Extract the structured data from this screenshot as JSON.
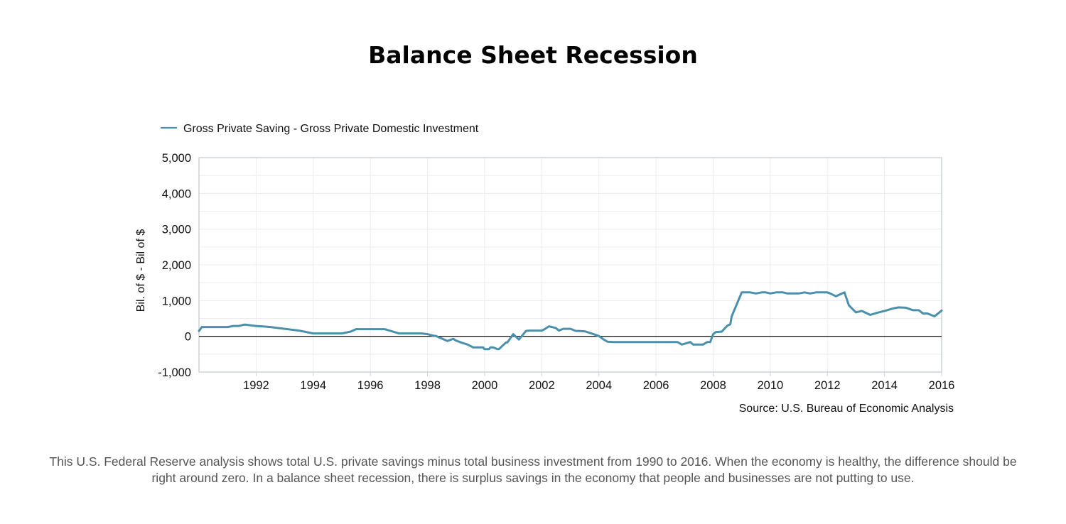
{
  "page": {
    "title": "Balance Sheet Recession",
    "source": "Source: U.S. Bureau of Economic Analysis",
    "caption": "This U.S. Federal Reserve analysis shows total U.S. private savings minus total business investment from 1990 to 2016. When the economy is healthy, the difference should be right around zero. In a balance sheet recession, there is surplus savings in the economy that people and businesses are not putting to use."
  },
  "chart_data": {
    "type": "line",
    "title": "Balance Sheet Recession",
    "xlabel": "",
    "ylabel": "Bil. of $ - Bil of $",
    "xlim": [
      1990,
      2016
    ],
    "ylim": [
      -1000,
      5000
    ],
    "y_ticks": [
      -1000,
      0,
      1000,
      2000,
      3000,
      4000,
      5000
    ],
    "y_tick_labels": [
      "-1,000",
      "0",
      "1,000",
      "2,000",
      "3,000",
      "4,000",
      "5,000"
    ],
    "x_ticks": [
      1992,
      1994,
      1996,
      1998,
      2000,
      2002,
      2004,
      2006,
      2008,
      2010,
      2012,
      2014,
      2016
    ],
    "x_tick_labels": [
      "1992",
      "1994",
      "1996",
      "1998",
      "2000",
      "2002",
      "2004",
      "2006",
      "2008",
      "2010",
      "2012",
      "2014",
      "2016"
    ],
    "grid": true,
    "legend_position": "top-left",
    "line_color": "#4a8fab",
    "series": [
      {
        "name": "Gross Private Saving - Gross Private Domestic Investment",
        "x": [
          1990.0,
          1990.1,
          1990.3,
          1990.6,
          1991.0,
          1991.2,
          1991.4,
          1991.6,
          1991.8,
          1992.0,
          1992.2,
          1992.5,
          1992.8,
          1993.0,
          1993.2,
          1993.5,
          1994.0,
          1994.3,
          1994.6,
          1994.8,
          1995.0,
          1995.3,
          1995.5,
          1995.7,
          1995.85,
          1996.0,
          1996.5,
          1997.0,
          1997.2,
          1997.4,
          1997.6,
          1997.8,
          1998.0,
          1998.1,
          1998.2,
          1998.3,
          1998.4,
          1998.5,
          1998.7,
          1998.9,
          1999.0,
          1999.2,
          1999.4,
          1999.6,
          1999.75,
          1999.95,
          2000.0,
          2000.15,
          2000.2,
          2000.3,
          2000.45,
          2000.5,
          2000.75,
          2000.8,
          2001.0,
          2001.2,
          2001.45,
          2001.55,
          2001.75,
          2001.9,
          2002.0,
          2002.1,
          2002.25,
          2002.5,
          2002.6,
          2002.75,
          2003.0,
          2003.2,
          2003.3,
          2003.5,
          2003.7,
          2004.0,
          2004.15,
          2004.3,
          2004.5,
          2004.6,
          2004.8,
          2005.0,
          2005.3,
          2005.5,
          2005.8,
          2006.0,
          2006.3,
          2006.6,
          2006.75,
          2006.9,
          2007.0,
          2007.2,
          2007.3,
          2007.5,
          2007.65,
          2007.8,
          2007.9,
          2008.0,
          2008.1,
          2008.3,
          2008.5,
          2008.6,
          2008.65,
          2009.0,
          2009.1,
          2009.3,
          2009.5,
          2009.7,
          2009.85,
          2010.0,
          2010.2,
          2010.45,
          2010.6,
          2010.75,
          2011.0,
          2011.2,
          2011.4,
          2011.6,
          2011.8,
          2012.0,
          2012.1,
          2012.3,
          2012.6,
          2012.75,
          2013.0,
          2013.2,
          2013.5,
          2013.75,
          2014.0,
          2014.3,
          2014.5,
          2014.75,
          2015.0,
          2015.2,
          2015.35,
          2015.5,
          2015.75,
          2016.0
        ],
        "y": [
          150,
          260,
          260,
          260,
          260,
          290,
          290,
          330,
          310,
          290,
          280,
          260,
          230,
          210,
          190,
          160,
          80,
          80,
          80,
          80,
          80,
          130,
          200,
          200,
          200,
          200,
          200,
          80,
          80,
          80,
          80,
          80,
          60,
          40,
          20,
          10,
          -30,
          -60,
          -130,
          -70,
          -120,
          -180,
          -230,
          -310,
          -310,
          -310,
          -360,
          -360,
          -310,
          -310,
          -360,
          -360,
          -170,
          -170,
          60,
          -90,
          150,
          160,
          160,
          160,
          160,
          200,
          280,
          230,
          160,
          210,
          210,
          150,
          150,
          140,
          90,
          10,
          -80,
          -150,
          -160,
          -160,
          -160,
          -160,
          -160,
          -160,
          -160,
          -160,
          -160,
          -160,
          -160,
          -230,
          -210,
          -160,
          -230,
          -230,
          -230,
          -160,
          -160,
          60,
          120,
          130,
          300,
          340,
          560,
          1230,
          1230,
          1230,
          1200,
          1230,
          1230,
          1200,
          1230,
          1230,
          1200,
          1200,
          1200,
          1230,
          1200,
          1230,
          1230,
          1230,
          1200,
          1120,
          1230,
          870,
          670,
          710,
          600,
          660,
          710,
          780,
          810,
          800,
          730,
          730,
          640,
          640,
          560,
          720
        ]
      }
    ]
  }
}
